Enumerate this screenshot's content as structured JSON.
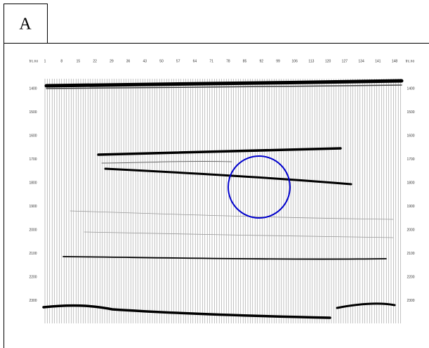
{
  "panel_label": "A",
  "axis": {
    "corner_label": "trc.no",
    "traces": [
      1,
      8,
      15,
      22,
      29,
      36,
      43,
      50,
      57,
      64,
      71,
      78,
      85,
      92,
      99,
      106,
      113,
      120,
      127,
      134,
      141,
      148
    ],
    "times": [
      1400,
      1500,
      1600,
      1700,
      1800,
      1900,
      2000,
      2100,
      2200,
      2300
    ]
  }
}
